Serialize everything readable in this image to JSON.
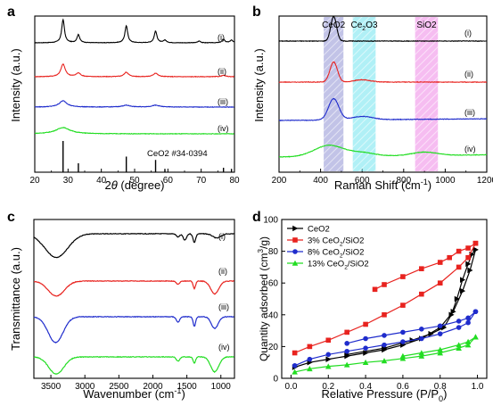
{
  "panel_labels": [
    "a",
    "b",
    "c",
    "d"
  ],
  "chart_data": [
    {
      "panel": "a",
      "type": "line",
      "xlabel": "2θ (degree)",
      "ylabel": "Intensity (a.u.)",
      "xlim": [
        20,
        80
      ],
      "xticks": [
        20,
        30,
        40,
        50,
        60,
        70,
        80
      ],
      "yticks_shown": false,
      "grid": false,
      "series": [
        {
          "name": "(i)",
          "color": "#000000",
          "peaks": [
            [
              28.5,
              26
            ],
            [
              33.1,
              9
            ],
            [
              47.5,
              19
            ],
            [
              56.3,
              13
            ],
            [
              59.1,
              3
            ],
            [
              69.4,
              2
            ],
            [
              76.7,
              4
            ],
            [
              79.1,
              3
            ]
          ],
          "peak_width": 0.5,
          "noise": 0.25
        },
        {
          "name": "(ii)",
          "color": "#e8231f",
          "peaks": [
            [
              28.5,
              14
            ],
            [
              33.1,
              4
            ],
            [
              47.5,
              5
            ],
            [
              56.3,
              4
            ],
            [
              76.7,
              1.5
            ]
          ],
          "peak_width": 0.8,
          "noise": 0.3
        },
        {
          "name": "(iii)",
          "color": "#1f2ccc",
          "peaks": [
            [
              28.5,
              7
            ],
            [
              47.5,
              2
            ],
            [
              56.3,
              2
            ]
          ],
          "peak_width": 1.4,
          "noise": 0.3
        },
        {
          "name": "(iv)",
          "color": "#22dd22",
          "peaks": [
            [
              28.5,
              7
            ]
          ],
          "peak_width": 2.6,
          "noise": 0.3
        }
      ],
      "reference": {
        "label": "CeO2 #34-0394",
        "sticks": [
          [
            28.5,
            28
          ],
          [
            33.1,
            8
          ],
          [
            47.5,
            14
          ],
          [
            56.3,
            11
          ],
          [
            59.1,
            3
          ],
          [
            76.7,
            4
          ],
          [
            79.1,
            3
          ]
        ]
      }
    },
    {
      "panel": "b",
      "type": "line",
      "xlabel": "Raman Shift (cm-1)",
      "ylabel": "Intensity (a.u.)",
      "xlim": [
        200,
        1200
      ],
      "xticks": [
        200,
        400,
        600,
        800,
        1000,
        1200
      ],
      "yticks_shown": false,
      "grid": false,
      "bands": [
        {
          "label": "CeO2",
          "range": [
            415,
            510
          ],
          "color": "#8f91d4"
        },
        {
          "label": "Ce2O3",
          "range": [
            555,
            665
          ],
          "color": "#6fe3ef"
        },
        {
          "label": "SiO2",
          "range": [
            855,
            965
          ],
          "color": "#ee86e6"
        }
      ],
      "series": [
        {
          "name": "(i)",
          "color": "#000000",
          "peaks": [
            [
              463,
              22,
              14
            ]
          ],
          "slope": 0
        },
        {
          "name": "(ii)",
          "color": "#e8231f",
          "peaks": [
            [
              463,
              18,
              18
            ],
            [
              600,
              2,
              40
            ]
          ],
          "slope": 0
        },
        {
          "name": "(iii)",
          "color": "#1f2ccc",
          "peaks": [
            [
              463,
              19,
              25
            ],
            [
              600,
              3,
              50
            ]
          ],
          "slope": 1.5
        },
        {
          "name": "(iv)",
          "color": "#22dd22",
          "peaks": [
            [
              440,
              10,
              70
            ],
            [
              600,
              3,
              60
            ],
            [
              900,
              3,
              60
            ]
          ],
          "slope": 2
        }
      ]
    },
    {
      "panel": "c",
      "type": "line",
      "xlabel": "Wavenumber (cm-1)",
      "ylabel": "Transmittance (a.u.)",
      "xlim": [
        3750,
        800
      ],
      "xticks": [
        3500,
        3000,
        2500,
        2000,
        1500,
        1000
      ],
      "yticks_shown": false,
      "grid": false,
      "series": [
        {
          "name": "(i)",
          "color": "#000000",
          "dips": [
            [
              3420,
              22,
              170
            ],
            [
              1630,
              3,
              25
            ],
            [
              1530,
              6,
              25
            ],
            [
              1390,
              8,
              20
            ],
            [
              1060,
              4,
              60
            ]
          ]
        },
        {
          "name": "(ii)",
          "color": "#e8231f",
          "dips": [
            [
              3420,
              14,
              120
            ],
            [
              1630,
              3,
              25
            ],
            [
              1390,
              7,
              18
            ],
            [
              1090,
              12,
              60
            ]
          ]
        },
        {
          "name": "(iii)",
          "color": "#1f2ccc",
          "dips": [
            [
              3430,
              24,
              110
            ],
            [
              1630,
              5,
              25
            ],
            [
              1390,
              9,
              18
            ],
            [
              1090,
              11,
              50
            ]
          ]
        },
        {
          "name": "(iv)",
          "color": "#22dd22",
          "dips": [
            [
              3420,
              16,
              110
            ],
            [
              1630,
              4,
              25
            ],
            [
              1390,
              6,
              18
            ],
            [
              1090,
              14,
              60
            ]
          ]
        }
      ]
    },
    {
      "panel": "d",
      "type": "line",
      "xlabel": "Relative Pressure (P/P0)",
      "ylabel": "Quantity adsorbed (cm3/g)",
      "xlim": [
        -0.05,
        1.05
      ],
      "ylim": [
        0,
        100
      ],
      "xticks": [
        0.0,
        0.2,
        0.4,
        0.6,
        0.8,
        1.0
      ],
      "yticks": [
        0,
        20,
        40,
        60,
        80,
        100
      ],
      "grid": false,
      "legend": "top-left",
      "series": [
        {
          "name": "CeO2",
          "color": "#000000",
          "marker": "triangle-right",
          "adsorption": [
            [
              0.02,
              7
            ],
            [
              0.1,
              10
            ],
            [
              0.2,
              12
            ],
            [
              0.3,
              14
            ],
            [
              0.4,
              16
            ],
            [
              0.5,
              18
            ],
            [
              0.6,
              21
            ],
            [
              0.7,
              25
            ],
            [
              0.8,
              32
            ],
            [
              0.87,
              42
            ],
            [
              0.92,
              55
            ],
            [
              0.96,
              68
            ],
            [
              0.99,
              81
            ]
          ],
          "desorption": [
            [
              0.99,
              81
            ],
            [
              0.97,
              78
            ],
            [
              0.95,
              72
            ],
            [
              0.92,
              62
            ],
            [
              0.89,
              50
            ],
            [
              0.86,
              40
            ],
            [
              0.82,
              32
            ],
            [
              0.75,
              28
            ],
            [
              0.65,
              24
            ],
            [
              0.5,
              19
            ],
            [
              0.3,
              15
            ]
          ]
        },
        {
          "name": "3% CeO2/SiO2",
          "color": "#e8231f",
          "marker": "square",
          "adsorption": [
            [
              0.02,
              16
            ],
            [
              0.1,
              20
            ],
            [
              0.2,
              24
            ],
            [
              0.3,
              29
            ],
            [
              0.4,
              34
            ],
            [
              0.5,
              40
            ],
            [
              0.6,
              46
            ],
            [
              0.7,
              53
            ],
            [
              0.8,
              60
            ],
            [
              0.9,
              70
            ],
            [
              0.95,
              76
            ],
            [
              0.99,
              85
            ]
          ],
          "desorption": [
            [
              0.99,
              85
            ],
            [
              0.95,
              82
            ],
            [
              0.9,
              80
            ],
            [
              0.85,
              76
            ],
            [
              0.8,
              73
            ],
            [
              0.7,
              69
            ],
            [
              0.6,
              64
            ],
            [
              0.5,
              59
            ],
            [
              0.45,
              56
            ]
          ]
        },
        {
          "name": "8% CeO2/SiO2",
          "color": "#1f2ccc",
          "marker": "circle",
          "adsorption": [
            [
              0.02,
              8
            ],
            [
              0.1,
              12
            ],
            [
              0.2,
              15
            ],
            [
              0.3,
              17
            ],
            [
              0.4,
              19
            ],
            [
              0.5,
              21
            ],
            [
              0.6,
              23
            ],
            [
              0.7,
              25
            ],
            [
              0.8,
              28
            ],
            [
              0.9,
              32
            ],
            [
              0.95,
              35
            ],
            [
              0.99,
              42
            ]
          ],
          "desorption": [
            [
              0.99,
              42
            ],
            [
              0.95,
              38
            ],
            [
              0.9,
              36
            ],
            [
              0.8,
              33
            ],
            [
              0.7,
              31
            ],
            [
              0.6,
              29
            ],
            [
              0.5,
              27
            ],
            [
              0.4,
              25
            ],
            [
              0.3,
              22
            ]
          ]
        },
        {
          "name": "13% CeO2/SiO2",
          "color": "#22dd22",
          "marker": "triangle-up",
          "adsorption": [
            [
              0.02,
              4
            ],
            [
              0.1,
              6
            ],
            [
              0.2,
              7.5
            ],
            [
              0.3,
              8.5
            ],
            [
              0.4,
              10
            ],
            [
              0.5,
              11
            ],
            [
              0.6,
              12.5
            ],
            [
              0.7,
              14
            ],
            [
              0.8,
              16
            ],
            [
              0.9,
              19
            ],
            [
              0.95,
              21
            ],
            [
              0.99,
              26
            ]
          ],
          "desorption": [
            [
              0.99,
              26
            ],
            [
              0.95,
              23
            ],
            [
              0.9,
              21
            ],
            [
              0.8,
              18
            ],
            [
              0.7,
              16
            ],
            [
              0.6,
              14
            ]
          ]
        }
      ]
    }
  ]
}
